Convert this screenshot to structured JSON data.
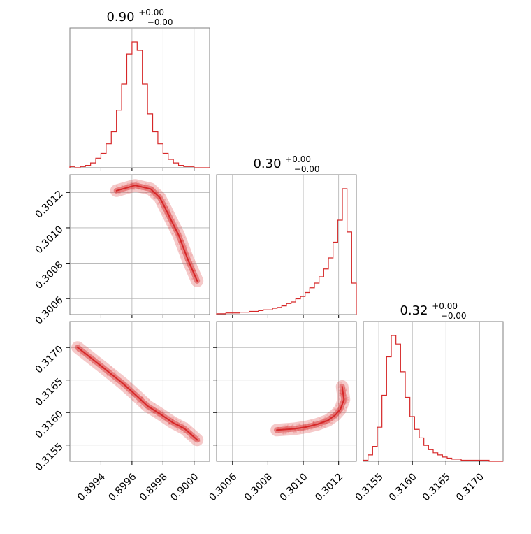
{
  "chart_data": [
    {
      "type": "histogram",
      "panel": "diag-0",
      "title_value": "0.90",
      "title_sup": "+0.00",
      "title_sub": "−0.00",
      "x_range": [
        0.8992,
        0.9001
      ],
      "x_ticks": [
        0.8994,
        0.8996,
        0.8998,
        0.9
      ],
      "bins": [
        0.89921,
        0.89924,
        0.89927,
        0.8993,
        0.89933,
        0.89936,
        0.89939,
        0.89942,
        0.89945,
        0.89948,
        0.89951,
        0.89954,
        0.89957,
        0.8996,
        0.89963,
        0.89966,
        0.89969,
        0.89972,
        0.89975,
        0.89978,
        0.89981,
        0.89984,
        0.89987,
        0.8999,
        0.89993,
        0.89996,
        0.89999,
        0.90002
      ],
      "counts": [
        1,
        0,
        1,
        2,
        4,
        8,
        12,
        20,
        30,
        48,
        70,
        95,
        105,
        98,
        70,
        45,
        30,
        20,
        12,
        7,
        4,
        2,
        1,
        1,
        0,
        0,
        0
      ]
    },
    {
      "type": "histogram",
      "panel": "diag-1",
      "title_value": "0.30",
      "title_sup": "+0.00",
      "title_sub": "−0.00",
      "x_range": [
        0.30051,
        0.3013
      ],
      "x_ticks": [
        0.3006,
        0.3008,
        0.301,
        0.3012
      ],
      "counts": [
        1,
        1,
        2,
        2,
        2,
        3,
        3,
        4,
        4,
        5,
        6,
        6,
        8,
        9,
        11,
        14,
        16,
        20,
        23,
        28,
        34,
        40,
        48,
        58,
        72,
        92,
        120,
        160,
        105,
        40
      ]
    },
    {
      "type": "histogram",
      "panel": "diag-2",
      "title_value": "0.32",
      "title_sup": "+0.00",
      "title_sub": "−0.00",
      "x_range": [
        0.31527,
        0.31735
      ],
      "x_ticks": [
        0.3155,
        0.316,
        0.3165,
        0.317
      ],
      "counts": [
        1,
        6,
        14,
        32,
        62,
        98,
        118,
        110,
        84,
        60,
        42,
        30,
        22,
        15,
        11,
        8,
        6,
        4,
        3,
        2,
        2,
        1,
        1,
        1,
        1,
        1,
        1,
        0,
        0,
        0
      ]
    },
    {
      "type": "scatter",
      "panel": "scatter-1-0",
      "x_range": [
        0.8992,
        0.9001
      ],
      "y_range": [
        0.30051,
        0.3013
      ],
      "x_ticks": [
        0.8994,
        0.8996,
        0.8998,
        0.9
      ],
      "y_ticks": [
        0.3006,
        0.3008,
        0.301,
        0.3012
      ],
      "trend": [
        [
          0.8995,
          0.30121
        ],
        [
          0.89962,
          0.30124
        ],
        [
          0.89972,
          0.30122
        ],
        [
          0.89978,
          0.30117
        ],
        [
          0.89982,
          0.3011
        ],
        [
          0.89986,
          0.30103
        ],
        [
          0.8999,
          0.30096
        ],
        [
          0.89996,
          0.30082
        ],
        [
          0.90002,
          0.3007
        ]
      ]
    },
    {
      "type": "scatter",
      "panel": "scatter-2-0",
      "x_range": [
        0.8992,
        0.9001
      ],
      "y_range": [
        0.31525,
        0.3174
      ],
      "x_ticks": [
        0.8994,
        0.8996,
        0.8998,
        0.9
      ],
      "y_ticks": [
        0.3155,
        0.316,
        0.3165,
        0.317
      ],
      "trend": [
        [
          0.89925,
          0.317
        ],
        [
          0.8994,
          0.31672
        ],
        [
          0.89954,
          0.31645
        ],
        [
          0.89962,
          0.31628
        ],
        [
          0.8997,
          0.3161
        ],
        [
          0.89978,
          0.31598
        ],
        [
          0.89986,
          0.31585
        ],
        [
          0.89994,
          0.31575
        ],
        [
          0.90002,
          0.31558
        ]
      ]
    },
    {
      "type": "scatter",
      "panel": "scatter-2-1",
      "x_range": [
        0.30051,
        0.3013
      ],
      "y_range": [
        0.31525,
        0.3174
      ],
      "x_ticks": [
        0.3006,
        0.3008,
        0.301,
        0.3012
      ],
      "y_ticks": [
        0.3155,
        0.316,
        0.3165,
        0.317
      ],
      "trend": [
        [
          0.30085,
          0.31573
        ],
        [
          0.30095,
          0.31575
        ],
        [
          0.30102,
          0.31578
        ],
        [
          0.30108,
          0.31582
        ],
        [
          0.30114,
          0.31588
        ],
        [
          0.30118,
          0.31596
        ],
        [
          0.30121,
          0.31605
        ],
        [
          0.30123,
          0.3162
        ],
        [
          0.30122,
          0.3164
        ]
      ]
    }
  ],
  "colors": {
    "line": "#d62728",
    "fill": "#d62728",
    "grid": "#b0b0b0",
    "axis": "#808080"
  }
}
